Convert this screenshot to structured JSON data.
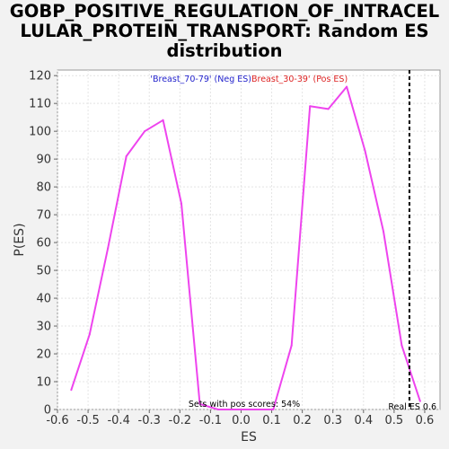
{
  "chart_data": {
    "type": "line",
    "title_lines": [
      "GOBP_POSITIVE_REGULATION_OF_INTRACEL",
      "LULAR_PROTEIN_TRANSPORT: Random ES",
      "distribution"
    ],
    "xlabel": "ES",
    "ylabel": "P(ES)",
    "xlim": [
      -0.6,
      0.65
    ],
    "ylim": [
      0,
      122
    ],
    "x_ticks": [
      -0.6,
      -0.5,
      -0.4,
      -0.3,
      -0.2,
      -0.1,
      0.0,
      0.1,
      0.2,
      0.3,
      0.4,
      0.5,
      0.6
    ],
    "x_tick_labels": [
      "-0.6",
      "-0.5",
      "-0.4",
      "-0.3",
      "-0.2",
      "-0.1",
      "0.0",
      "0.1",
      "0.2",
      "0.3",
      "0.4",
      "0.5",
      "0.6"
    ],
    "y_ticks": [
      0,
      10,
      20,
      30,
      40,
      50,
      60,
      70,
      80,
      90,
      100,
      110,
      120
    ],
    "y_tick_labels": [
      "0",
      "10",
      "20",
      "30",
      "40",
      "50",
      "60",
      "70",
      "80",
      "90",
      "100",
      "110",
      "120"
    ],
    "grid": true,
    "series": [
      {
        "color": "#ee44ee",
        "x": [
          -0.555,
          -0.495,
          -0.435,
          -0.375,
          -0.315,
          -0.255,
          -0.195,
          -0.135,
          -0.075,
          -0.015,
          0.045,
          0.105,
          0.165,
          0.225,
          0.285,
          0.345,
          0.405,
          0.465,
          0.525,
          0.585
        ],
        "y": [
          7,
          27,
          58,
          91,
          100,
          104,
          74,
          2,
          0,
          0,
          0,
          0,
          23,
          109,
          108,
          116,
          93,
          64,
          23,
          3
        ]
      }
    ],
    "real_es": {
      "value": 0.55,
      "label": "Real ES 0.6",
      "color": "#000000",
      "style": "dashed"
    },
    "legend": {
      "neg_label": "'Breast_70-79' (Neg ES)",
      "neg_color": "#2222cc",
      "pos_label": "Breast_30-39' (Pos ES)",
      "pos_color": "#dd2222"
    },
    "annotation": "Sets with pos scores: 54%"
  }
}
